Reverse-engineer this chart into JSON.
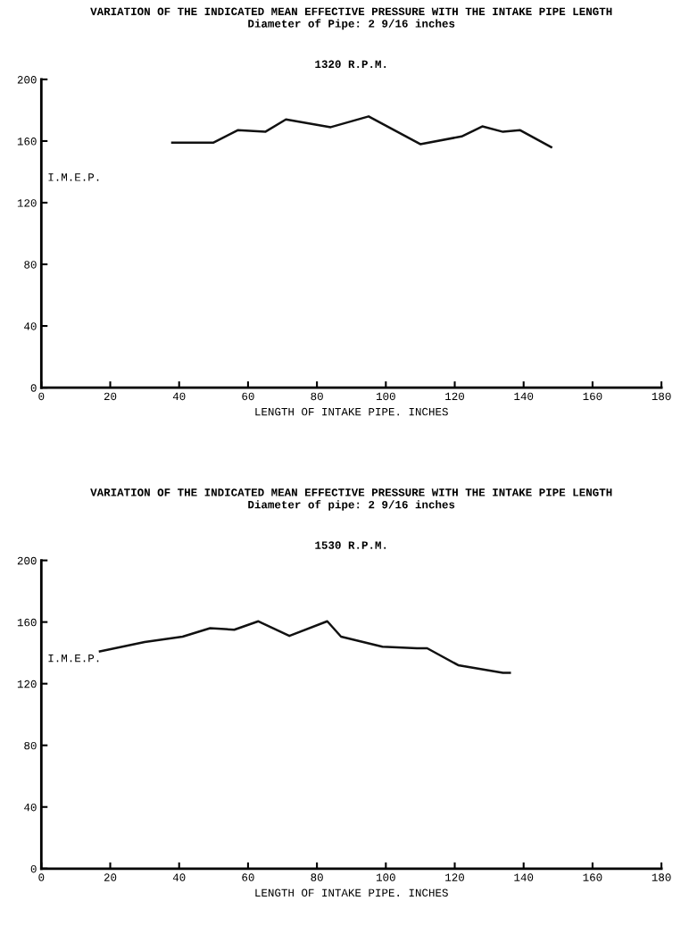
{
  "chart_data": [
    {
      "type": "line",
      "title": "VARIATION OF THE INDICATED MEAN EFFECTIVE PRESSURE WITH THE INTAKE PIPE LENGTH\nDiameter of Pipe: 2 9/16 inches",
      "subtitle": "1320 R.P.M.",
      "xlabel": "LENGTH OF INTAKE PIPE. INCHES",
      "ylabel": "I.M.E.P.",
      "series": [
        {
          "color": "#111111",
          "x": [
            38,
            50,
            57,
            65,
            71,
            84,
            95,
            110,
            122,
            128,
            134,
            139,
            148
          ],
          "values": [
            159,
            159,
            167,
            166,
            174,
            169,
            176,
            158,
            163,
            169.5,
            166,
            167,
            156
          ]
        }
      ],
      "xlim": [
        0,
        180
      ],
      "xticks": [
        0,
        20,
        40,
        60,
        80,
        100,
        120,
        140,
        160,
        180
      ],
      "ylim": [
        0,
        200
      ],
      "yticks": [
        0,
        40,
        80,
        120,
        160,
        200
      ],
      "grid": false,
      "legend": false
    },
    {
      "type": "line",
      "title": "VARIATION OF THE INDICATED MEAN EFFECTIVE PRESSURE WITH THE INTAKE PIPE LENGTH\nDiameter of pipe: 2 9/16 inches",
      "subtitle": "1530 R.P.M.",
      "xlabel": "LENGTH OF INTAKE PIPE. INCHES",
      "ylabel": "I.M.E.P.",
      "series": [
        {
          "color": "#111111",
          "x": [
            17,
            30,
            41,
            49,
            56,
            63,
            72,
            83,
            87,
            99,
            109,
            112,
            121,
            134,
            136
          ],
          "values": [
            141,
            147,
            150.5,
            156,
            155,
            160.5,
            151,
            160.5,
            150.5,
            144,
            143,
            143,
            132,
            127,
            127
          ]
        }
      ],
      "xlim": [
        0,
        180
      ],
      "xticks": [
        0,
        20,
        40,
        60,
        80,
        100,
        120,
        140,
        160,
        180
      ],
      "ylim": [
        0,
        200
      ],
      "yticks": [
        0,
        40,
        80,
        120,
        160,
        200
      ],
      "grid": false,
      "legend": false
    }
  ]
}
